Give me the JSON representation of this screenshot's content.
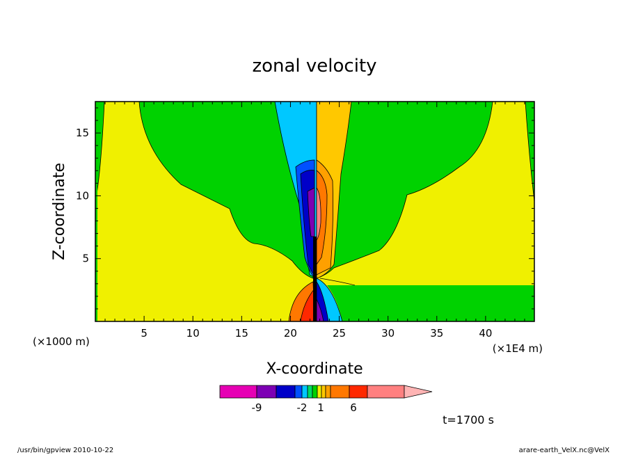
{
  "chart_data": {
    "type": "heatmap",
    "title": "zonal velocity",
    "xlabel": "X-coordinate",
    "ylabel": "Z-coordinate",
    "x_unit_left": "(×1000 m)",
    "x_unit_right": "(×1E4 m)",
    "xlim": [
      0,
      45
    ],
    "ylim": [
      0,
      17.5
    ],
    "xticks": [
      5,
      10,
      15,
      20,
      25,
      30,
      35,
      40
    ],
    "yticks": [
      5,
      10,
      15
    ],
    "colorbar": {
      "labels": [
        "-9",
        "-2",
        "1",
        "6"
      ],
      "colors": [
        "#e600b4",
        "#7d00b4",
        "#0000c8",
        "#0050ff",
        "#00c8ff",
        "#00dc64",
        "#00d200",
        "#f0f000",
        "#ffc800",
        "#ffa000",
        "#ff7800",
        "#ff2800",
        "#ff8080",
        "#ffb4b4"
      ]
    },
    "fields": {
      "background_low": "yellow",
      "upper_layer": "green",
      "jet_left": "negative (blue/purple)",
      "jet_right": "positive (orange/red)"
    },
    "time_label": "t=1700 s"
  },
  "footer": {
    "left": "/usr/bin/gpview  2010-10-22",
    "right": "arare-earth_VelX.nc@VelX"
  }
}
